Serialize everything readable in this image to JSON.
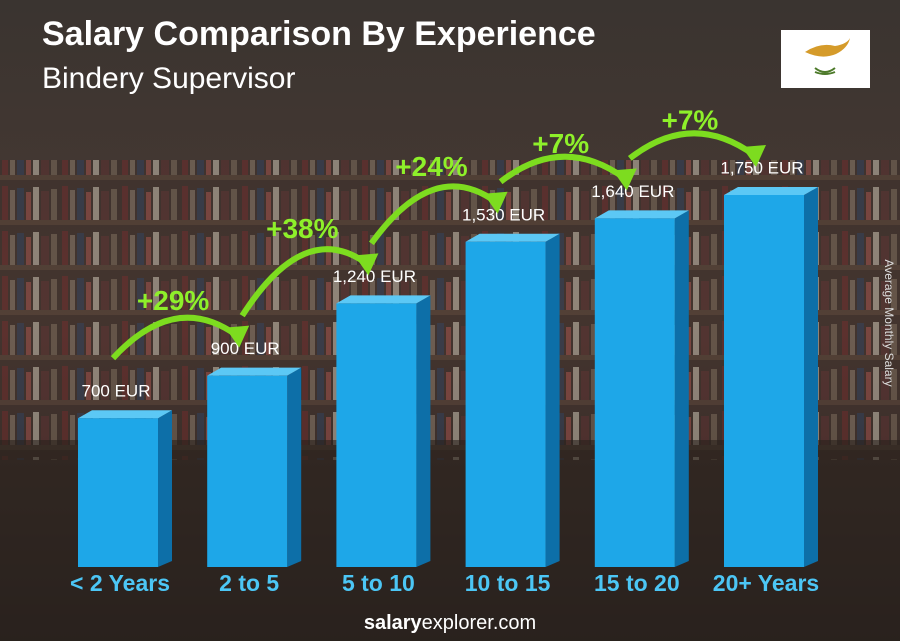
{
  "chart_data": {
    "type": "bar",
    "title": "Salary Comparison By Experience",
    "subtitle": "Bindery Supervisor",
    "y_axis_label": "Average Monthly Salary",
    "categories": [
      "< 2 Years",
      "2 to 5",
      "5 to 10",
      "10 to 15",
      "15 to 20",
      "20+ Years"
    ],
    "values": [
      700,
      900,
      1240,
      1530,
      1640,
      1750
    ],
    "value_labels": [
      "700 EUR",
      "900 EUR",
      "1,240 EUR",
      "1,530 EUR",
      "1,640 EUR",
      "1,750 EUR"
    ],
    "color": "#1ea7e8",
    "annotations": [
      "+29%",
      "+38%",
      "+24%",
      "+7%",
      "+7%"
    ],
    "footer": [
      "salary",
      "explorer.com"
    ]
  }
}
